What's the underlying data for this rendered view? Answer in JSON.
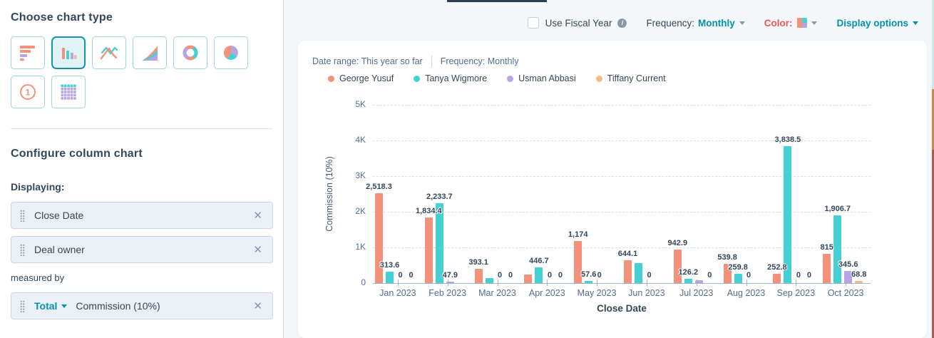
{
  "sidebar": {
    "choose_title": "Choose chart type",
    "chart_types": [
      {
        "name": "horizontal-bar",
        "selected": false
      },
      {
        "name": "column",
        "selected": true
      },
      {
        "name": "line",
        "selected": false
      },
      {
        "name": "area",
        "selected": false
      },
      {
        "name": "donut",
        "selected": false
      },
      {
        "name": "pie",
        "selected": false
      },
      {
        "name": "single-value",
        "selected": false
      },
      {
        "name": "data-table",
        "selected": false
      }
    ],
    "configure_title": "Configure column chart",
    "displaying_label": "Displaying:",
    "chips": [
      {
        "label": "Close Date"
      },
      {
        "label": "Deal owner"
      }
    ],
    "measured_by_label": "measured by",
    "measure_chip": {
      "aggregation": "Total",
      "label": "Commission (10%)"
    }
  },
  "toolbar": {
    "fiscal_label": "Use Fiscal Year",
    "frequency_label": "Frequency:",
    "frequency_value": "Monthly",
    "color_label": "Color:",
    "color_swatch": [
      "#f4917b",
      "#45d1d4",
      "#f4917b",
      "#b8a4e3"
    ],
    "display_options_label": "Display options"
  },
  "chart_header": {
    "date_range": "Date range: This year so far",
    "frequency": "Frequency: Monthly"
  },
  "chart_data": {
    "type": "bar",
    "title": "",
    "xlabel": "Close Date",
    "ylabel": "Commission (10%)",
    "ylim": [
      0,
      5000
    ],
    "yticks": [
      "0",
      "1K",
      "2K",
      "3K",
      "4K",
      "5K"
    ],
    "grid": "dashed-horizontal",
    "legend_position": "top",
    "categories": [
      "Jan 2023",
      "Feb 2023",
      "Mar 2023",
      "Apr 2023",
      "May 2023",
      "Jun 2023",
      "Jul 2023",
      "Aug 2023",
      "Sep 2023",
      "Oct 2023"
    ],
    "series": [
      {
        "name": "George Yusuf",
        "color": "#f4917b",
        "values": [
          2518.3,
          1834.4,
          393.1,
          250,
          1174,
          644.1,
          942.9,
          539.8,
          252.8,
          815
        ],
        "labels": [
          "2,518.3",
          "1,834.4",
          "393.1",
          "",
          "1,174",
          "644.1",
          "942.9",
          "539.8",
          "252.8",
          "815"
        ]
      },
      {
        "name": "Tanya Wigmore",
        "color": "#45d1d4",
        "values": [
          313.6,
          2233.7,
          150,
          446.7,
          57.6,
          560,
          126.2,
          259.8,
          3838.5,
          1906.7
        ],
        "labels": [
          "313.6",
          "2,233.7",
          "",
          "446.7",
          "57.6",
          "",
          "126.2",
          "259.8",
          "3,838.5",
          "1,906.7"
        ]
      },
      {
        "name": "Usman Abbasi",
        "color": "#b8a4e3",
        "values": [
          0,
          47.9,
          0,
          0,
          0,
          0,
          90,
          0,
          0,
          345.6
        ],
        "labels": [
          "0",
          "47.9",
          "0",
          "0",
          "0",
          "0",
          "",
          "0",
          "0",
          "345.6"
        ]
      },
      {
        "name": "Tiffany Current",
        "color": "#f7bc87",
        "values": [
          0,
          0,
          0,
          0,
          0,
          0,
          0,
          0,
          0,
          68.8
        ],
        "labels": [
          "0",
          "",
          "0",
          "0",
          "",
          "",
          "0",
          "",
          "0",
          "68.8"
        ]
      }
    ]
  }
}
